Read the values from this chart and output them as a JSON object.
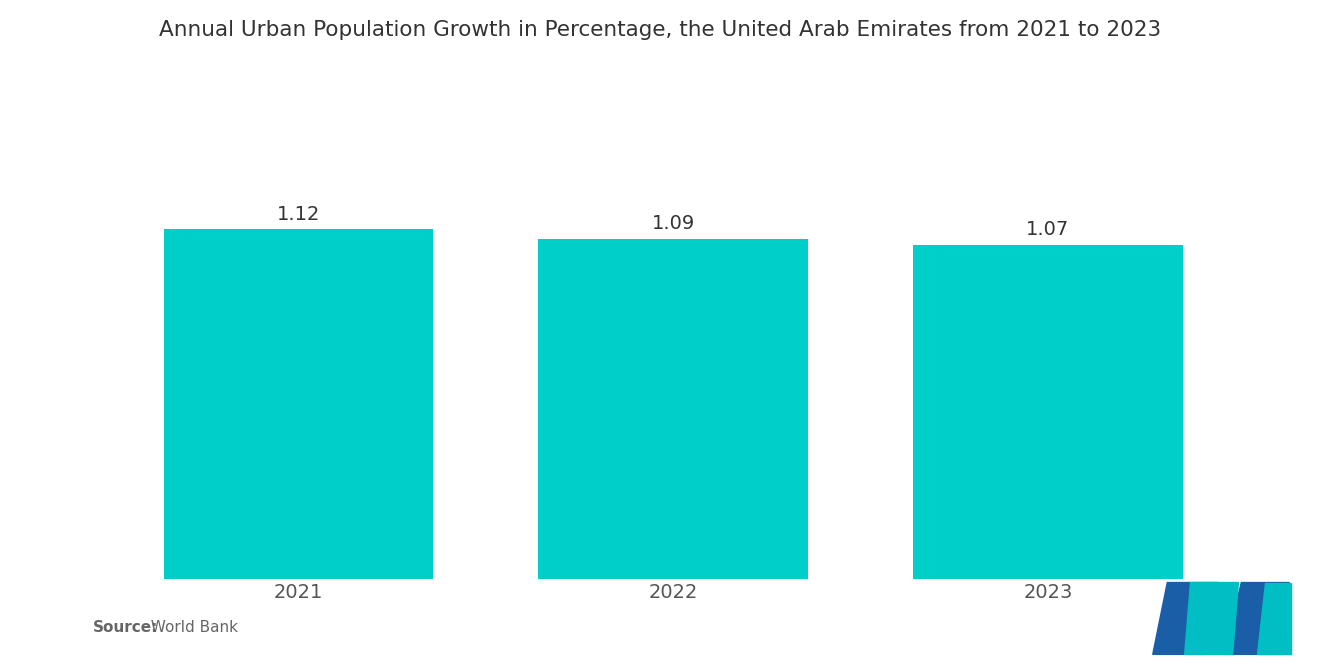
{
  "title": "Annual Urban Population Growth in Percentage, the United Arab Emirates from 2021 to 2023",
  "categories": [
    "2021",
    "2022",
    "2023"
  ],
  "values": [
    1.12,
    1.09,
    1.07
  ],
  "bar_color": "#00CEC9",
  "background_color": "#ffffff",
  "title_fontsize": 15.5,
  "label_fontsize": 14,
  "value_fontsize": 14,
  "source_bold": "Source:",
  "source_normal": "  World Bank",
  "ylim": [
    0,
    1.45
  ],
  "bar_width": 0.72,
  "xlim": [
    -0.55,
    2.55
  ]
}
